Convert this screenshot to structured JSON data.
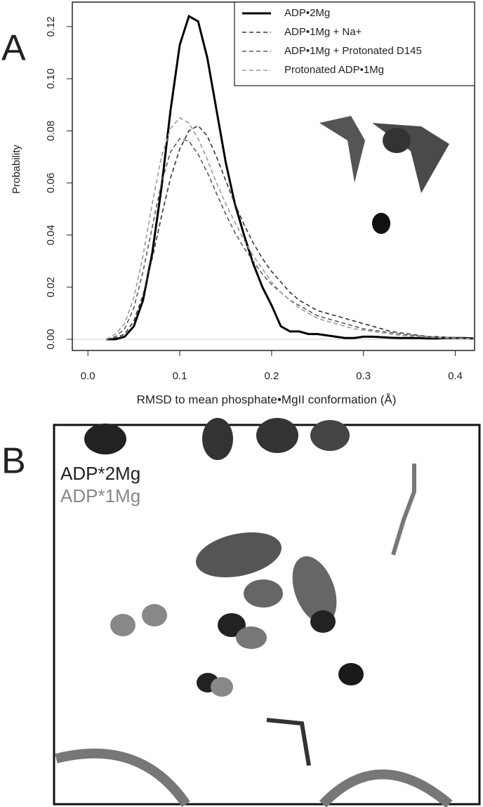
{
  "panel_labels": {
    "a": "A",
    "b": "B"
  },
  "chart_data": {
    "type": "line",
    "xlabel": "RMSD to mean phosphate•MgII conformation (Å)",
    "ylabel": "Probability",
    "x": [
      0.02,
      0.03,
      0.04,
      0.05,
      0.06,
      0.07,
      0.08,
      0.09,
      0.1,
      0.11,
      0.12,
      0.13,
      0.14,
      0.15,
      0.16,
      0.17,
      0.18,
      0.19,
      0.2,
      0.21,
      0.22,
      0.23,
      0.24,
      0.25,
      0.26,
      0.27,
      0.28,
      0.29,
      0.3,
      0.31,
      0.32,
      0.33,
      0.34,
      0.35,
      0.36,
      0.37,
      0.38,
      0.39,
      0.4,
      0.41,
      0.42
    ],
    "series": [
      {
        "name": "ADP•2Mg",
        "color": "#000000",
        "style": "solid",
        "values": [
          0,
          0,
          0.001,
          0.005,
          0.015,
          0.033,
          0.058,
          0.088,
          0.113,
          0.124,
          0.122,
          0.108,
          0.088,
          0.068,
          0.052,
          0.04,
          0.029,
          0.02,
          0.013,
          0.005,
          0.003,
          0.003,
          0.002,
          0.002,
          0.0015,
          0.001,
          0.0005,
          0.0005,
          0.001,
          0.001,
          0.0008,
          0.0006,
          0.0005,
          0.0005,
          0.0005,
          0.0003,
          0.0003,
          0.0005,
          0.0005,
          0.0005,
          0.0003
        ]
      },
      {
        "name": "ADP•1Mg + Na+",
        "color": "#333333",
        "style": "dashed",
        "values": [
          0,
          0.0005,
          0.002,
          0.007,
          0.017,
          0.031,
          0.047,
          0.062,
          0.073,
          0.08,
          0.082,
          0.078,
          0.07,
          0.061,
          0.052,
          0.044,
          0.037,
          0.031,
          0.026,
          0.022,
          0.018,
          0.015,
          0.013,
          0.011,
          0.01,
          0.009,
          0.008,
          0.007,
          0.006,
          0.005,
          0.004,
          0.003,
          0.0025,
          0.002,
          0.0015,
          0.001,
          0.001,
          0.0008,
          0.0006,
          0.0005,
          0.0004
        ]
      },
      {
        "name": "ADP•1Mg + Protonated D145",
        "color": "#5a5a5a",
        "style": "dashed",
        "values": [
          0,
          0.001,
          0.004,
          0.012,
          0.026,
          0.043,
          0.06,
          0.072,
          0.077,
          0.076,
          0.071,
          0.064,
          0.056,
          0.048,
          0.041,
          0.035,
          0.03,
          0.025,
          0.021,
          0.018,
          0.015,
          0.013,
          0.011,
          0.009,
          0.008,
          0.007,
          0.006,
          0.005,
          0.004,
          0.0035,
          0.003,
          0.0025,
          0.002,
          0.0016,
          0.0013,
          0.001,
          0.0008,
          0.0006,
          0.0005,
          0.0004,
          0.0003
        ]
      },
      {
        "name": "Protonated ADP•1Mg",
        "color": "#9a9a9a",
        "style": "dashed",
        "values": [
          0,
          0.002,
          0.006,
          0.016,
          0.032,
          0.052,
          0.07,
          0.081,
          0.085,
          0.083,
          0.077,
          0.069,
          0.06,
          0.052,
          0.045,
          0.038,
          0.032,
          0.027,
          0.022,
          0.018,
          0.015,
          0.012,
          0.01,
          0.008,
          0.007,
          0.006,
          0.005,
          0.004,
          0.0035,
          0.003,
          0.0025,
          0.002,
          0.0015,
          0.0012,
          0.001,
          0.0008,
          0.0006,
          0.0005,
          0.0004,
          0.0003,
          0.0003
        ]
      }
    ],
    "xlim": [
      -0.017,
      0.421
    ],
    "ylim": [
      -0.0043,
      0.1294
    ],
    "xticks": [
      {
        "value": 0,
        "label": "0.0"
      },
      0.1,
      0.2,
      0.3,
      0.4
    ],
    "yticks": [
      {
        "value": 0,
        "label": "0.00"
      },
      0.02,
      0.04,
      0.06,
      0.08,
      {
        "value": 0.1,
        "label": "0.10"
      },
      0.12
    ],
    "legend": "top-right",
    "grid": false
  },
  "panel_b": {
    "labels": [
      "ADP*2Mg",
      "ADP*1Mg"
    ]
  }
}
